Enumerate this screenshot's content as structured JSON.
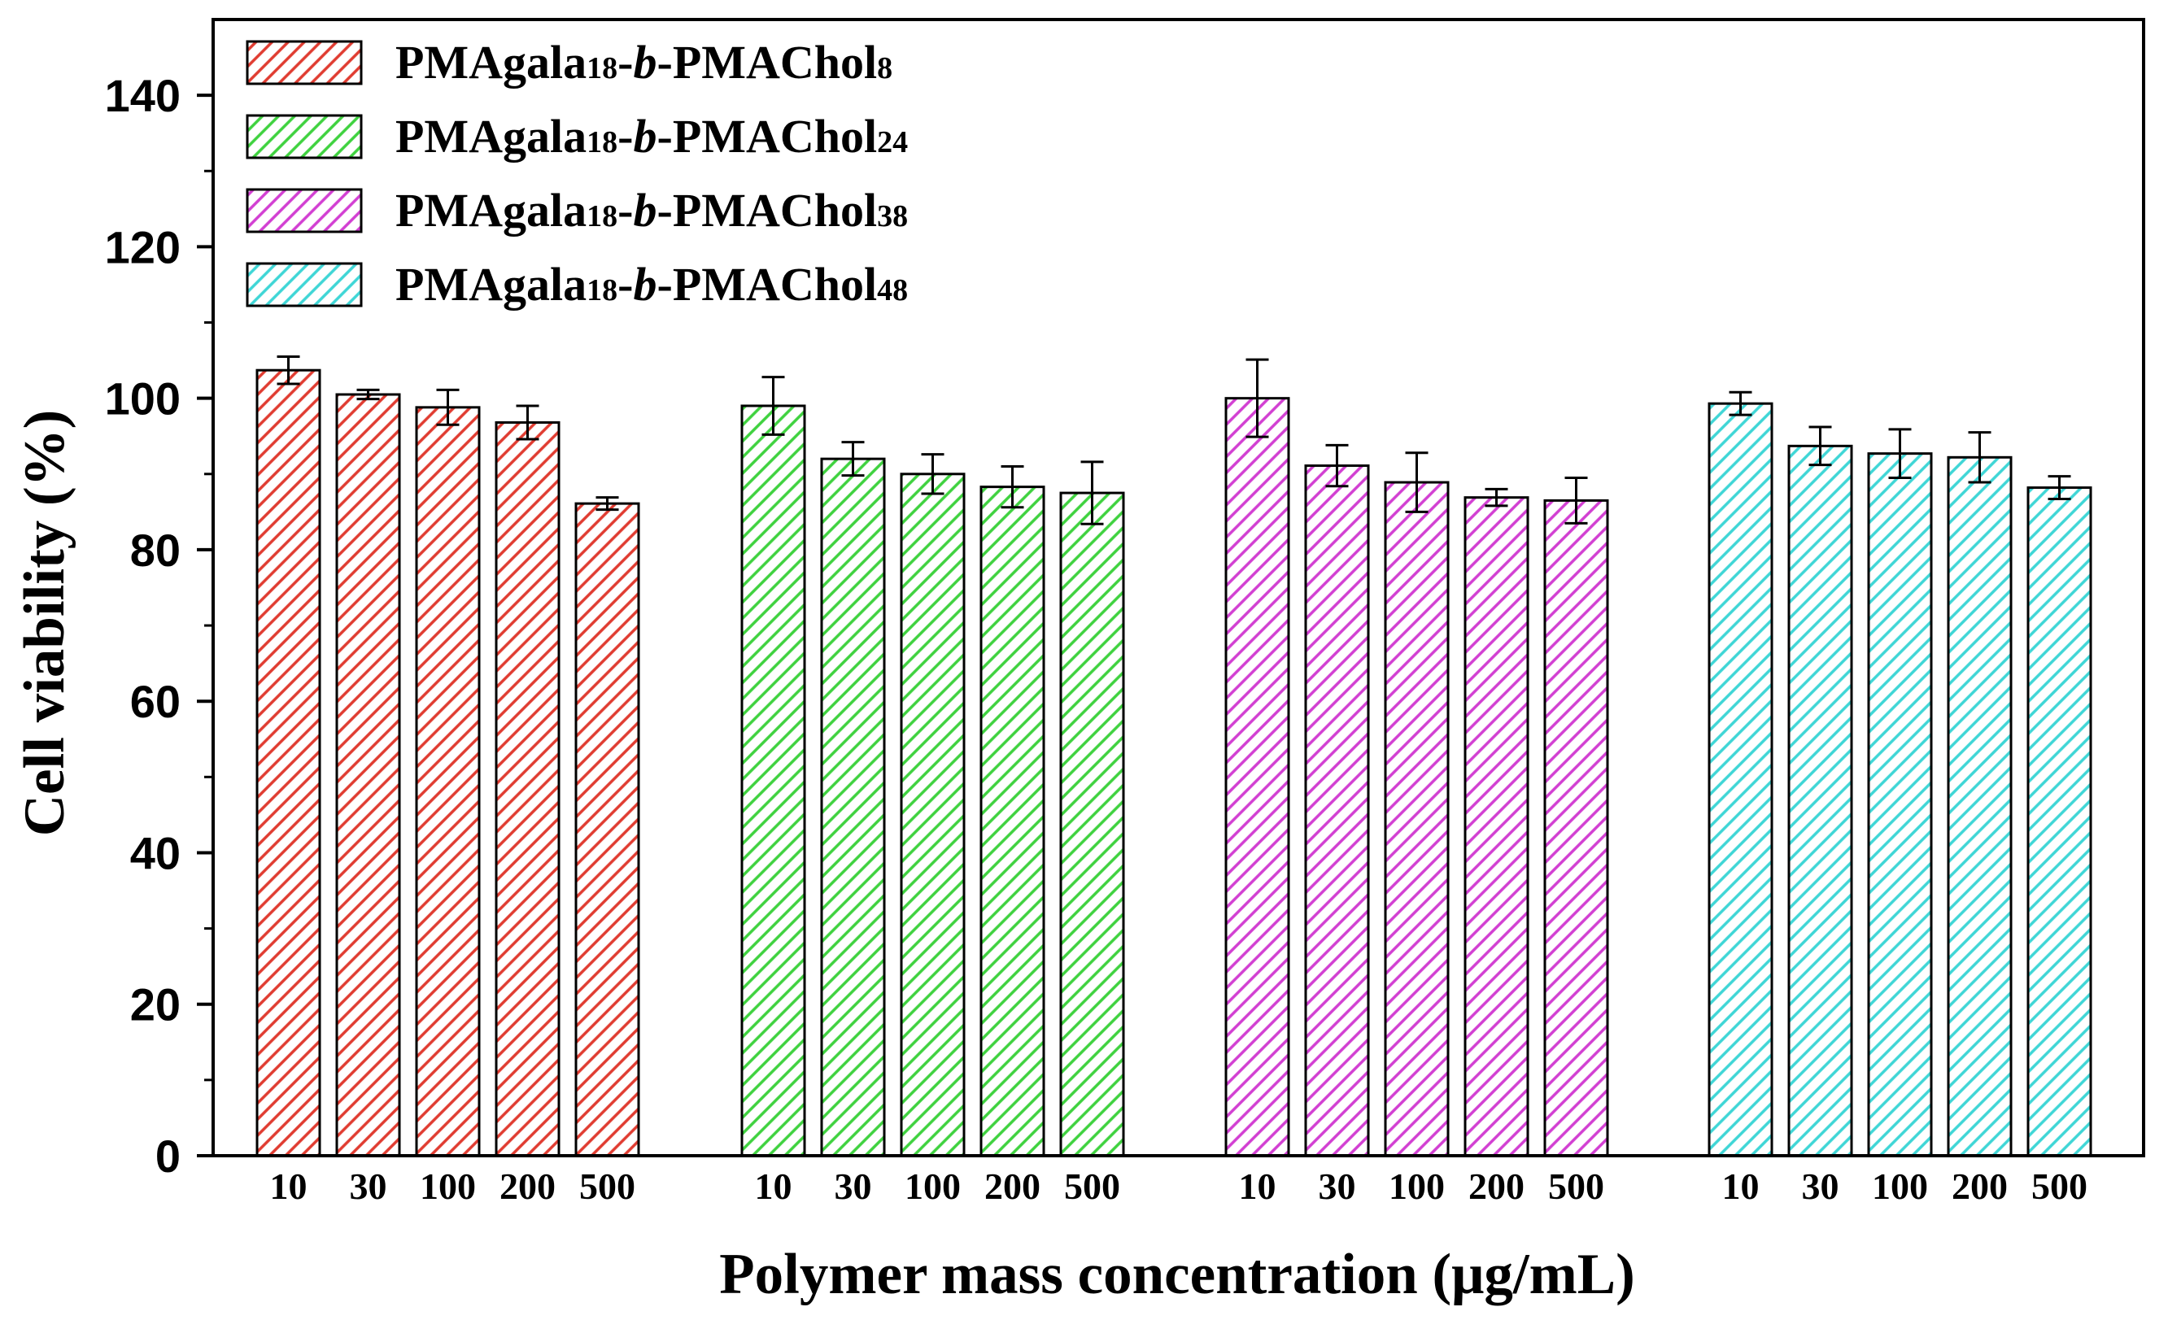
{
  "chart_data": {
    "type": "bar",
    "xlabel": "Polymer mass concentration (μg/mL)",
    "ylabel": "Cell viability (%)",
    "ylim": [
      0,
      150
    ],
    "yticks": [
      0,
      20,
      40,
      60,
      80,
      100,
      120,
      140
    ],
    "categories": [
      "10",
      "30",
      "100",
      "200",
      "500"
    ],
    "legend_position": "top-left",
    "series": [
      {
        "name": "PMAgala18-b-PMAChol8",
        "legend": {
          "base": "PMAgala",
          "sub1": "18",
          "dash1": "-",
          "italic": "b",
          "mid": "-PMAChol",
          "sub2": "8"
        },
        "color": "#e03c31",
        "values": [
          103.7,
          100.5,
          98.8,
          96.8,
          86.1
        ],
        "errors": [
          1.8,
          0.6,
          2.3,
          2.2,
          0.8
        ]
      },
      {
        "name": "PMAgala18-b-PMAChol24",
        "legend": {
          "base": "PMAgala",
          "sub1": "18",
          "dash1": "-",
          "italic": "b",
          "mid": "-PMAChol",
          "sub2": "24"
        },
        "color": "#3fd23f",
        "values": [
          99.0,
          92.0,
          90.0,
          88.3,
          87.5
        ],
        "errors": [
          3.8,
          2.2,
          2.6,
          2.7,
          4.1
        ]
      },
      {
        "name": "PMAgala18-b-PMAChol38",
        "legend": {
          "base": "PMAgala",
          "sub1": "18",
          "dash1": "-",
          "italic": "b",
          "mid": "-PMAChol",
          "sub2": "38"
        },
        "color": "#d23fd2",
        "values": [
          100.0,
          91.1,
          88.9,
          86.9,
          86.5
        ],
        "errors": [
          5.1,
          2.7,
          3.9,
          1.1,
          3.0
        ]
      },
      {
        "name": "PMAgala18-b-PMAChol48",
        "legend": {
          "base": "PMAgala",
          "sub1": "18",
          "dash1": "-",
          "italic": "b",
          "mid": "-PMAChol",
          "sub2": "48"
        },
        "color": "#3fd6d6",
        "values": [
          99.3,
          93.7,
          92.7,
          92.2,
          88.2
        ],
        "errors": [
          1.5,
          2.5,
          3.2,
          3.3,
          1.5
        ]
      }
    ]
  }
}
